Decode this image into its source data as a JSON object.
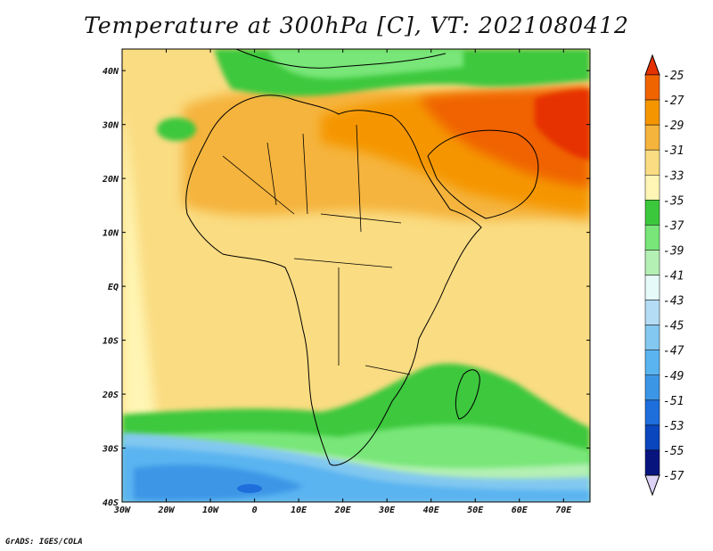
{
  "title": "Temperature at 300hPa [C], VT: 2021080412",
  "footer": "GrADS: IGES/COLA",
  "map": {
    "lon_range": [
      -30,
      76
    ],
    "lat_range": [
      -40,
      44
    ],
    "lat_ticks": [
      {
        "value": 40,
        "label": "40N"
      },
      {
        "value": 30,
        "label": "30N"
      },
      {
        "value": 20,
        "label": "20N"
      },
      {
        "value": 10,
        "label": "10N"
      },
      {
        "value": 0,
        "label": "EQ"
      },
      {
        "value": -10,
        "label": "10S"
      },
      {
        "value": -20,
        "label": "20S"
      },
      {
        "value": -30,
        "label": "30S"
      },
      {
        "value": -40,
        "label": "40S"
      }
    ],
    "lon_ticks": [
      {
        "value": -30,
        "label": "30W"
      },
      {
        "value": -20,
        "label": "20W"
      },
      {
        "value": -10,
        "label": "10W"
      },
      {
        "value": 0,
        "label": "0"
      },
      {
        "value": 10,
        "label": "10E"
      },
      {
        "value": 20,
        "label": "20E"
      },
      {
        "value": 30,
        "label": "30E"
      },
      {
        "value": 40,
        "label": "40E"
      },
      {
        "value": 50,
        "label": "50E"
      },
      {
        "value": 60,
        "label": "60E"
      },
      {
        "value": 70,
        "label": "70E"
      }
    ]
  },
  "colorbar": {
    "labels": [
      "-25",
      "-27",
      "-29",
      "-31",
      "-33",
      "-35",
      "-37",
      "-39",
      "-41",
      "-43",
      "-45",
      "-47",
      "-49",
      "-51",
      "-53",
      "-55",
      "-57"
    ],
    "colors": [
      "#e63200",
      "#f06400",
      "#f59600",
      "#f5b43c",
      "#fadc82",
      "#fff5b4",
      "#3cc83c",
      "#78e678",
      "#b4f0b4",
      "#e6fafa",
      "#b4dcf5",
      "#82c8f0",
      "#5ab4f0",
      "#3c96e6",
      "#1e6edc",
      "#0a46be",
      "#08147e",
      "#dcd2f5"
    ]
  }
}
